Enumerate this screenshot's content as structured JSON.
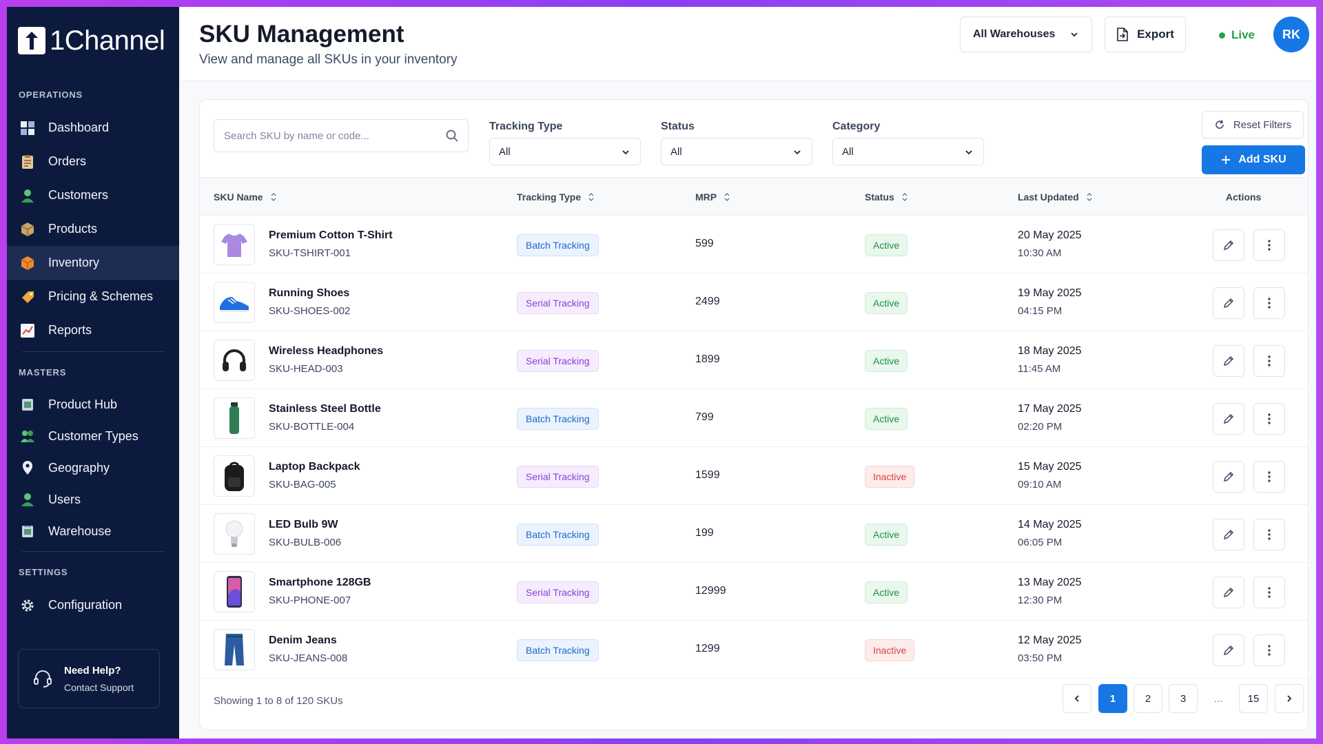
{
  "sidebar": {
    "logo_text": "1Channel",
    "sections": {
      "operations": "OPERATIONS",
      "masters": "MASTERS",
      "settings": "SETTINGS"
    },
    "operations": [
      {
        "label": "Dashboard",
        "icon": "dashboard-icon"
      },
      {
        "label": "Orders",
        "icon": "orders-icon"
      },
      {
        "label": "Customers",
        "icon": "customers-icon"
      },
      {
        "label": "Products",
        "icon": "products-icon"
      },
      {
        "label": "Inventory",
        "icon": "inventory-icon",
        "active": true
      },
      {
        "label": "Pricing & Schemes",
        "icon": "pricing-tag-icon"
      },
      {
        "label": "Reports",
        "icon": "reports-chart-icon"
      }
    ],
    "masters": [
      {
        "label": "Product Hub",
        "icon": "product-hub-icon"
      },
      {
        "label": "Customer Types",
        "icon": "customer-types-icon"
      },
      {
        "label": "Geography",
        "icon": "location-pin-icon"
      },
      {
        "label": "Users",
        "icon": "users-icon"
      },
      {
        "label": "Warehouse",
        "icon": "warehouse-icon"
      }
    ],
    "settings": [
      {
        "label": "Configuration",
        "icon": "gear-icon"
      }
    ],
    "help": {
      "title": "Need Help?",
      "subtitle": "Contact Support"
    }
  },
  "header": {
    "title": "SKU Management",
    "subtitle": "View and manage all SKUs in your inventory",
    "warehouse_select": "All Warehouses",
    "export_label": "Export",
    "live_label": "Live",
    "avatar_initials": "RK"
  },
  "filters": {
    "search_placeholder": "Search SKU by name or code...",
    "tracking_type": {
      "label": "Tracking Type",
      "value": "All"
    },
    "status": {
      "label": "Status",
      "value": "All"
    },
    "category": {
      "label": "Category",
      "value": "All"
    },
    "reset_label": "Reset Filters",
    "add_label": "Add SKU"
  },
  "table": {
    "headers": {
      "sku_name": "SKU Name",
      "tracking_type": "Tracking Type",
      "mrp": "MRP",
      "status": "Status",
      "last_updated": "Last Updated",
      "actions": "Actions"
    },
    "rows": [
      {
        "name": "Premium Cotton T-Shirt",
        "code": "SKU-TSHIRT-001",
        "tracking": "Batch Tracking",
        "tracking_kind": "batch",
        "mrp": "599",
        "status": "Active",
        "status_kind": "active",
        "date": "20 May 2025",
        "time": "10:30 AM",
        "thumb": "tshirt"
      },
      {
        "name": "Running Shoes",
        "code": "SKU-SHOES-002",
        "tracking": "Serial Tracking",
        "tracking_kind": "serial",
        "mrp": "2499",
        "status": "Active",
        "status_kind": "active",
        "date": "19 May 2025",
        "time": "04:15 PM",
        "thumb": "shoe"
      },
      {
        "name": "Wireless Headphones",
        "code": "SKU-HEAD-003",
        "tracking": "Serial Tracking",
        "tracking_kind": "serial",
        "mrp": "1899",
        "status": "Active",
        "status_kind": "active",
        "date": "18 May 2025",
        "time": "11:45 AM",
        "thumb": "headphones"
      },
      {
        "name": "Stainless Steel Bottle",
        "code": "SKU-BOTTLE-004",
        "tracking": "Batch Tracking",
        "tracking_kind": "batch",
        "mrp": "799",
        "status": "Active",
        "status_kind": "active",
        "date": "17 May 2025",
        "time": "02:20 PM",
        "thumb": "bottle"
      },
      {
        "name": "Laptop Backpack",
        "code": "SKU-BAG-005",
        "tracking": "Serial Tracking",
        "tracking_kind": "serial",
        "mrp": "1599",
        "status": "Inactive",
        "status_kind": "inactive",
        "date": "15 May 2025",
        "time": "09:10 AM",
        "thumb": "backpack"
      },
      {
        "name": "LED Bulb 9W",
        "code": "SKU-BULB-006",
        "tracking": "Batch Tracking",
        "tracking_kind": "batch",
        "mrp": "199",
        "status": "Active",
        "status_kind": "active",
        "date": "14 May 2025",
        "time": "06:05 PM",
        "thumb": "bulb"
      },
      {
        "name": "Smartphone 128GB",
        "code": "SKU-PHONE-007",
        "tracking": "Serial Tracking",
        "tracking_kind": "serial",
        "mrp": "12999",
        "status": "Active",
        "status_kind": "active",
        "date": "13 May 2025",
        "time": "12:30 PM",
        "thumb": "phone"
      },
      {
        "name": "Denim Jeans",
        "code": "SKU-JEANS-008",
        "tracking": "Batch Tracking",
        "tracking_kind": "batch",
        "mrp": "1299",
        "status": "Inactive",
        "status_kind": "inactive",
        "date": "12 May 2025",
        "time": "03:50 PM",
        "thumb": "jeans"
      }
    ]
  },
  "footer": {
    "showing_text": "Showing 1 to 8 of 120 SKUs",
    "pages": [
      "1",
      "2",
      "3",
      "...",
      "15"
    ],
    "current_page": "1"
  },
  "colors": {
    "sidebar_bg": "#0c1b3d",
    "accent": "#1677e5",
    "active_green": "#1f8f40",
    "inactive_red": "#d93f3f",
    "frame_purple": "#9b3ff2"
  }
}
